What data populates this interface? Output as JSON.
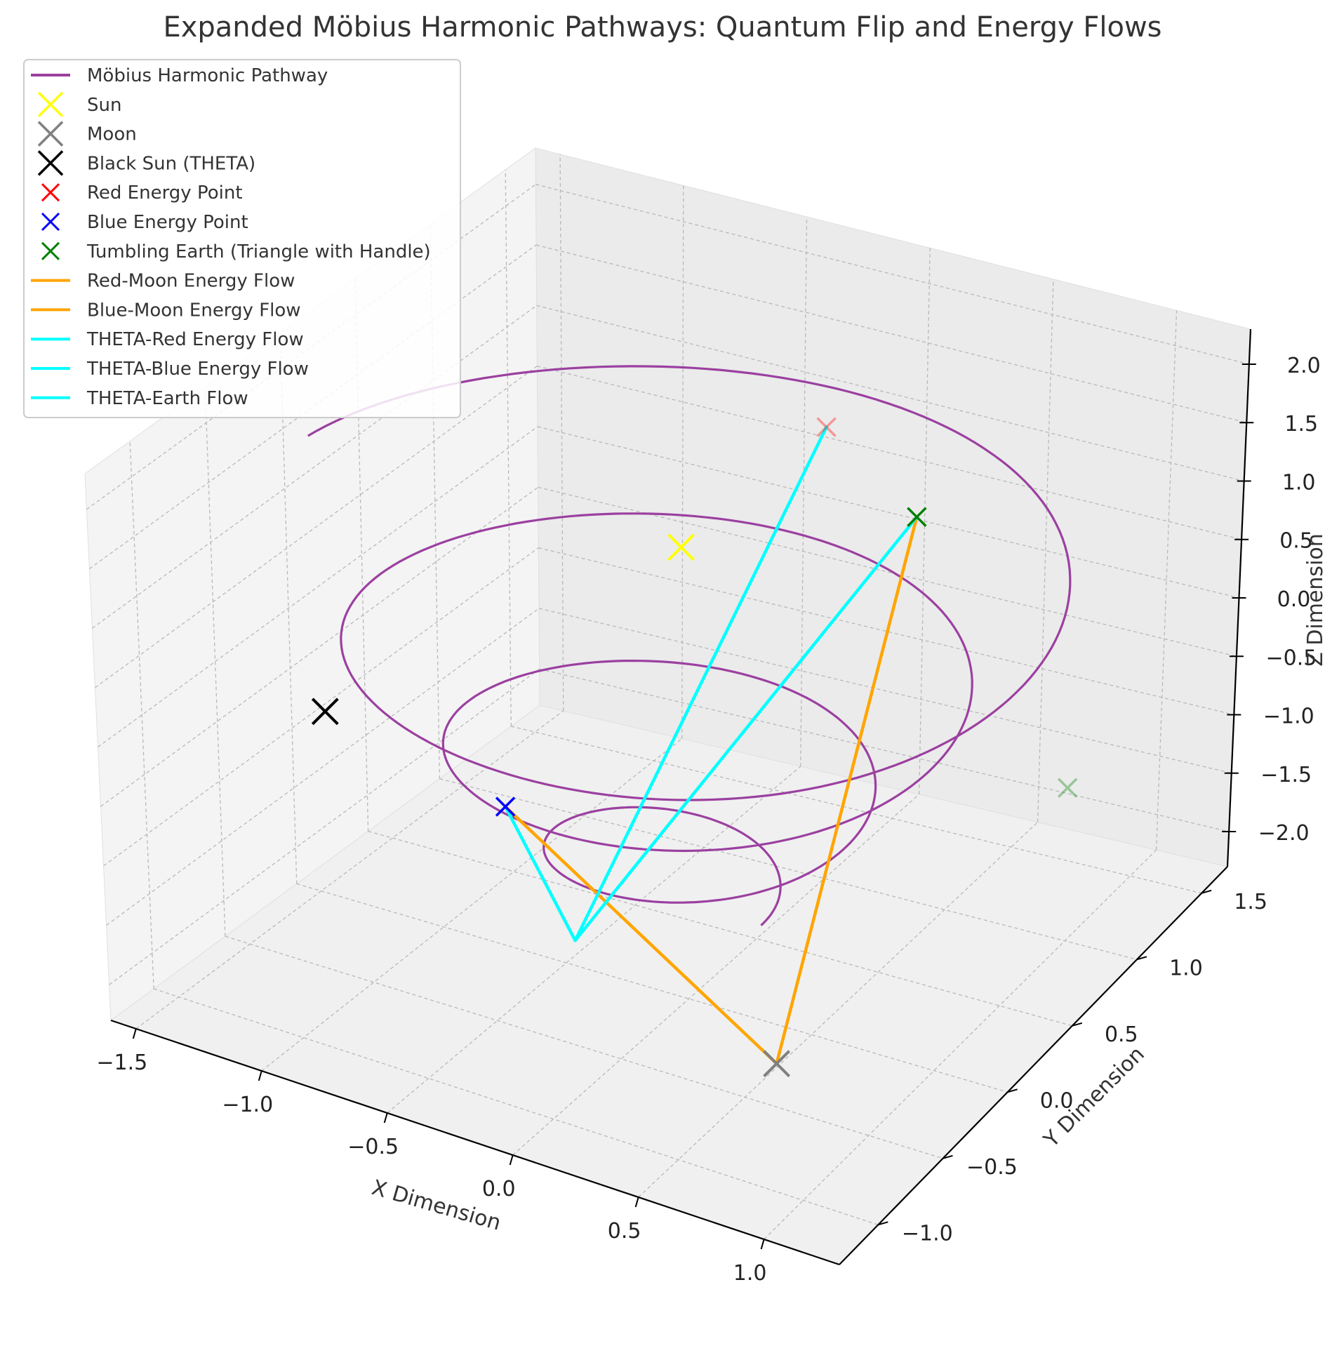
{
  "chart_data": {
    "type": "line",
    "projection": "3d",
    "title": "Expanded Möbius Harmonic Pathways: Quantum Flip and Energy Flows",
    "xlabel": "X Dimension",
    "ylabel": "Y Dimension",
    "zlabel": "Z Dimension",
    "xlim": [
      -1.6,
      1.3
    ],
    "ylim": [
      -1.3,
      1.7
    ],
    "zlim": [
      -2.3,
      2.3
    ],
    "x_ticks": [
      "−1.5",
      "−1.0",
      "−0.5",
      "0.0",
      "0.5",
      "1.0"
    ],
    "y_ticks": [
      "−1.0",
      "−0.5",
      "0.0",
      "0.5",
      "1.0",
      "1.5"
    ],
    "z_ticks": [
      "−2.0",
      "−1.5",
      "−1.0",
      "−0.5",
      "0.0",
      "0.5",
      "1.0",
      "1.5",
      "2.0"
    ],
    "grid": true,
    "legend_position": "upper-left",
    "pathway": {
      "name": "Möbius Harmonic Pathway",
      "color": "#9b40a0",
      "shape": "spiral",
      "turns": 3.5,
      "radius_start": 0.3,
      "radius_end": 1.5,
      "z_start": -1.5,
      "z_end": 1.5
    },
    "points": [
      {
        "name": "Sun",
        "x": 0.0,
        "y": 0.0,
        "z": 1.5,
        "color": "#ffff00",
        "size": "large"
      },
      {
        "name": "Moon",
        "x": 0.8,
        "y": -0.8,
        "z": -1.5,
        "color": "#808080",
        "size": "large"
      },
      {
        "name": "Black Sun (THETA)",
        "x": -1.1,
        "y": -0.6,
        "z": 0.0,
        "color": "#000000",
        "size": "large"
      },
      {
        "name": "Red Energy Point",
        "x": 0.0,
        "y": 1.0,
        "z": 1.5,
        "color": "#ff0000",
        "size": "medium",
        "alpha": 0.35
      },
      {
        "name": "Blue Energy Point",
        "x": -0.5,
        "y": -0.4,
        "z": -0.6,
        "color": "#0000ff",
        "size": "medium"
      },
      {
        "name": "Tumbling Earth (Triangle with Handle)",
        "x": 0.6,
        "y": 0.6,
        "z": 1.5,
        "color": "#008000",
        "size": "medium"
      },
      {
        "name": "",
        "x": 1.0,
        "y": 1.0,
        "z": -1.0,
        "color": "#008000",
        "size": "medium",
        "alpha": 0.35
      }
    ],
    "flows": [
      {
        "name": "Red-Moon Energy Flow",
        "from": "Tumbling Earth (Triangle with Handle)",
        "to": "Moon",
        "color": "#ffa500"
      },
      {
        "name": "Blue-Moon Energy Flow",
        "from": "Blue Energy Point",
        "to": "Moon",
        "color": "#ffa500"
      },
      {
        "name": "THETA-Red Energy Flow",
        "from": "Red Energy Point",
        "via": [
          0.0,
          -0.8,
          -1.0
        ],
        "color": "#00ffff"
      },
      {
        "name": "THETA-Blue Energy Flow",
        "from": "Blue Energy Point",
        "via": [
          0.0,
          -0.8,
          -1.0
        ],
        "color": "#00ffff"
      },
      {
        "name": "THETA-Earth Flow",
        "from": "Tumbling Earth (Triangle with Handle)",
        "via": [
          0.0,
          -0.8,
          -1.0
        ],
        "color": "#00ffff"
      }
    ],
    "legend": [
      {
        "label": "Möbius Harmonic Pathway",
        "kind": "line",
        "color": "#9b40a0"
      },
      {
        "label": "Sun",
        "kind": "x-large",
        "color": "#ffff00"
      },
      {
        "label": "Moon",
        "kind": "x-large",
        "color": "#808080"
      },
      {
        "label": "Black Sun (THETA)",
        "kind": "x-large",
        "color": "#000000"
      },
      {
        "label": "Red Energy Point",
        "kind": "x",
        "color": "#ff0000"
      },
      {
        "label": "Blue Energy Point",
        "kind": "x",
        "color": "#0000ff"
      },
      {
        "label": "Tumbling Earth (Triangle with Handle)",
        "kind": "x",
        "color": "#008000"
      },
      {
        "label": "Red-Moon Energy Flow",
        "kind": "line",
        "color": "#ffa500"
      },
      {
        "label": "Blue-Moon Energy Flow",
        "kind": "line",
        "color": "#ffa500"
      },
      {
        "label": "THETA-Red Energy Flow",
        "kind": "line",
        "color": "#00ffff"
      },
      {
        "label": "THETA-Blue Energy Flow",
        "kind": "line",
        "color": "#00ffff"
      },
      {
        "label": "THETA-Earth Flow",
        "kind": "line",
        "color": "#00ffff"
      }
    ]
  }
}
